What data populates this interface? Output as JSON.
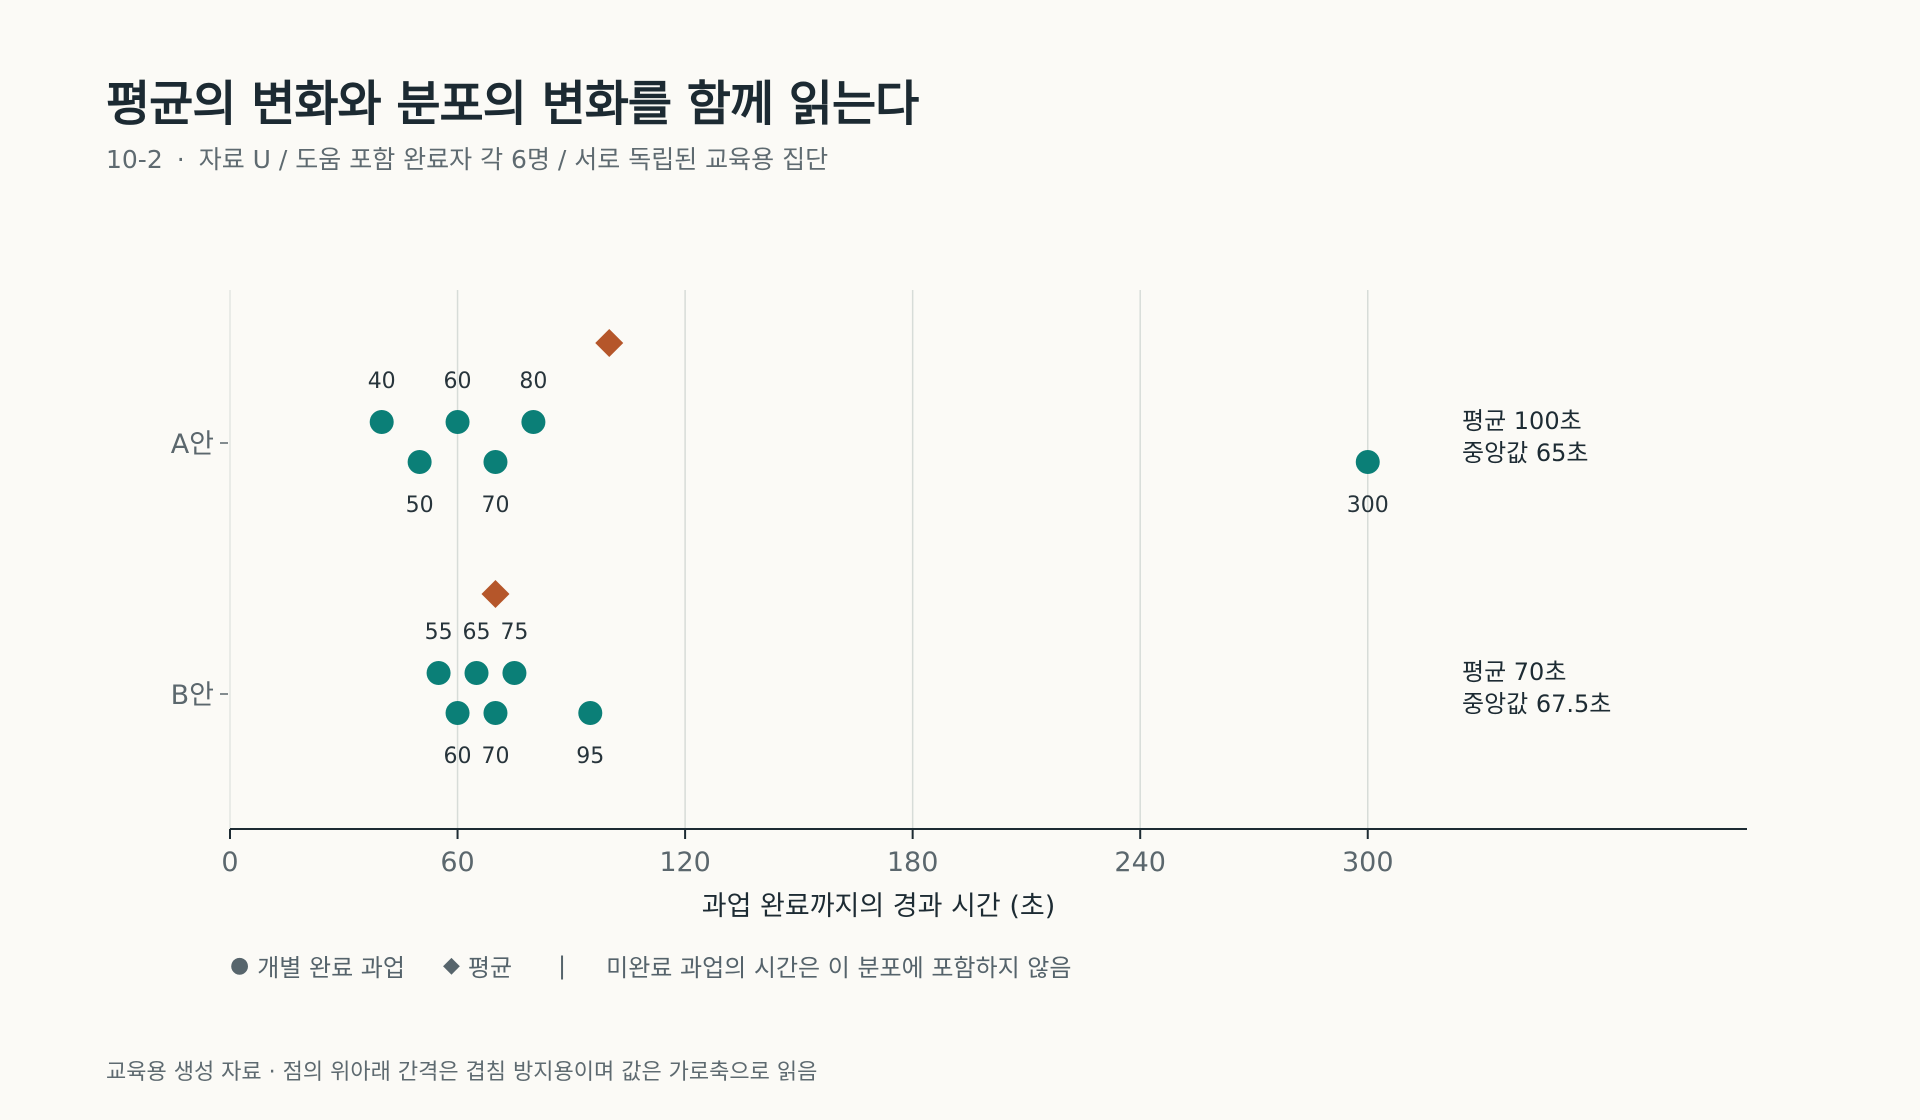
{
  "header": {
    "title": "평균의 변화와 분포의 변화를 함께 읽는다",
    "code": "10-2",
    "subtitle": "자료 U / 도움 포함 완료자 각 6명 / 서로 독립된 교육용 집단"
  },
  "legend": {
    "point_label": "개별 완료 과업",
    "mean_label": "평균",
    "separator": "|",
    "note": "미완료 과업의 시간은 이 분포에 포함하지 않음"
  },
  "footer": {
    "text": "교육용 생성 자료 · 점의 위아래 간격은 겹침 방지용이며 값은 가로축으로 읽음"
  },
  "colors": {
    "point": "#0b7f77",
    "mean": "#b5562a",
    "grid": "#d7dcd8",
    "axis": "#1d2b33",
    "tick_text": "#5b676d"
  },
  "chart_data": {
    "type": "scatter",
    "xlabel": "과업 완료까지의 경과 시간 (초)",
    "xlim": [
      0,
      400
    ],
    "xticks": [
      0,
      60,
      120,
      180,
      240,
      300
    ],
    "grid": true,
    "groups": [
      {
        "name": "A안",
        "values": [
          40,
          50,
          60,
          70,
          80,
          300
        ],
        "mean": 100,
        "median": 65,
        "summary": [
          "평균 100초",
          "중앙값 65초"
        ]
      },
      {
        "name": "B안",
        "values": [
          55,
          60,
          65,
          70,
          75,
          95
        ],
        "mean": 70,
        "median": 67.5,
        "summary": [
          "평균 70초",
          "중앙값 67.5초"
        ]
      }
    ]
  }
}
